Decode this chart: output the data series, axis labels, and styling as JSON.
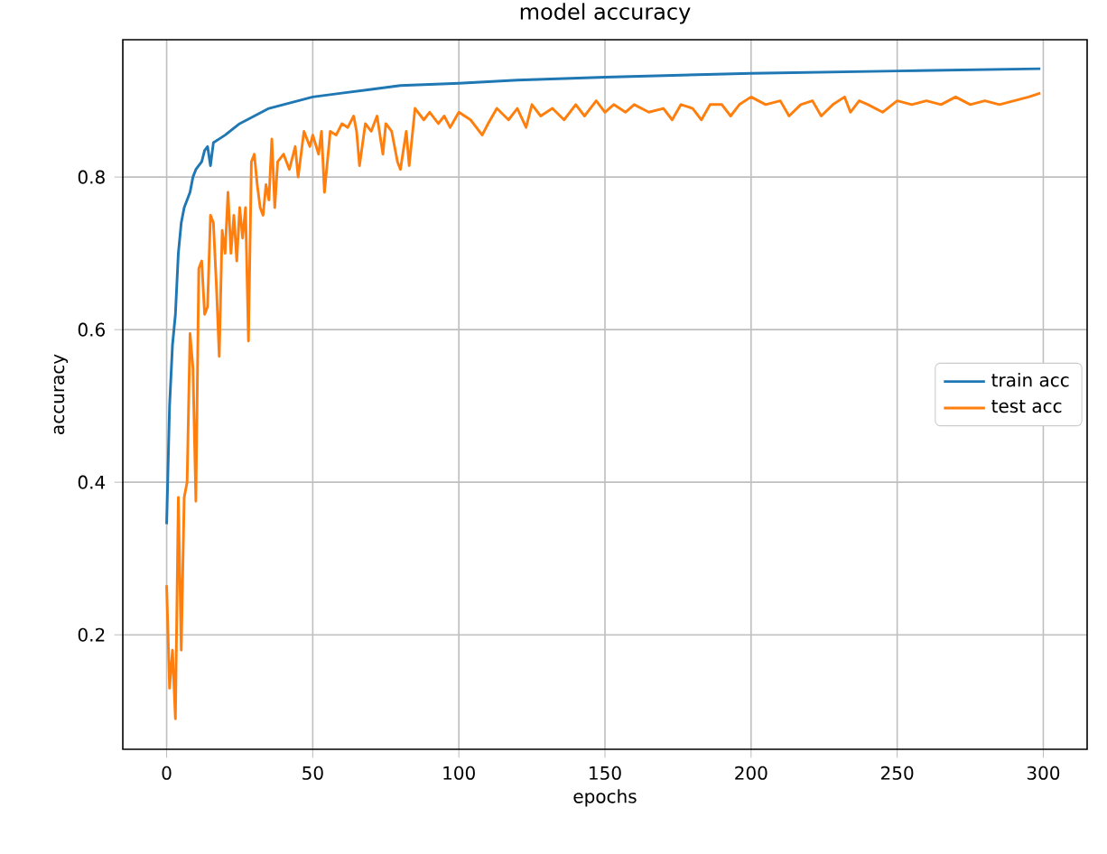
{
  "chart_data": {
    "type": "line",
    "title": "model accuracy",
    "xlabel": "epochs",
    "ylabel": "accuracy",
    "xlim": [
      -15,
      315
    ],
    "ylim": [
      0.05,
      0.98
    ],
    "xticks": [
      0,
      50,
      100,
      150,
      200,
      250,
      300
    ],
    "yticks": [
      0.2,
      0.4,
      0.6,
      0.8
    ],
    "grid": true,
    "legend": "right",
    "marker": "none",
    "line_style": "solid",
    "series": [
      {
        "name": "train acc",
        "color": "#1f77b4",
        "x": [
          0,
          1,
          2,
          3,
          4,
          5,
          6,
          7,
          8,
          9,
          10,
          12,
          13,
          14,
          15,
          16,
          18,
          20,
          25,
          30,
          35,
          40,
          50,
          60,
          70,
          80,
          100,
          120,
          150,
          200,
          250,
          299
        ],
        "values": [
          0.345,
          0.5,
          0.58,
          0.62,
          0.7,
          0.74,
          0.76,
          0.77,
          0.78,
          0.8,
          0.81,
          0.82,
          0.835,
          0.84,
          0.815,
          0.845,
          0.85,
          0.855,
          0.87,
          0.88,
          0.89,
          0.895,
          0.905,
          0.91,
          0.915,
          0.92,
          0.923,
          0.927,
          0.931,
          0.936,
          0.939,
          0.942
        ]
      },
      {
        "name": "test acc",
        "color": "#ff7f0e",
        "x": [
          0,
          1,
          2,
          3,
          4,
          5,
          6,
          7,
          8,
          9,
          10,
          11,
          12,
          13,
          14,
          15,
          16,
          17,
          18,
          19,
          20,
          21,
          22,
          23,
          24,
          25,
          26,
          27,
          28,
          29,
          30,
          31,
          32,
          33,
          34,
          35,
          36,
          37,
          38,
          40,
          42,
          44,
          45,
          47,
          49,
          50,
          52,
          53,
          54,
          56,
          58,
          60,
          62,
          64,
          65,
          66,
          68,
          70,
          72,
          74,
          75,
          77,
          79,
          80,
          82,
          83,
          85,
          88,
          90,
          93,
          95,
          97,
          100,
          104,
          108,
          110,
          113,
          117,
          120,
          123,
          125,
          128,
          132,
          136,
          140,
          143,
          147,
          150,
          153,
          157,
          160,
          165,
          170,
          173,
          176,
          180,
          183,
          186,
          190,
          193,
          196,
          200,
          205,
          210,
          213,
          217,
          221,
          224,
          228,
          232,
          234,
          237,
          240,
          245,
          250,
          255,
          260,
          265,
          270,
          275,
          280,
          285,
          290,
          295,
          299
        ],
        "values": [
          0.265,
          0.13,
          0.18,
          0.09,
          0.38,
          0.18,
          0.38,
          0.4,
          0.595,
          0.55,
          0.375,
          0.68,
          0.69,
          0.62,
          0.63,
          0.75,
          0.74,
          0.66,
          0.565,
          0.73,
          0.7,
          0.78,
          0.7,
          0.75,
          0.69,
          0.76,
          0.72,
          0.76,
          0.585,
          0.82,
          0.83,
          0.79,
          0.76,
          0.75,
          0.79,
          0.77,
          0.85,
          0.76,
          0.82,
          0.83,
          0.81,
          0.84,
          0.8,
          0.86,
          0.84,
          0.855,
          0.83,
          0.86,
          0.78,
          0.86,
          0.855,
          0.87,
          0.865,
          0.88,
          0.86,
          0.815,
          0.87,
          0.86,
          0.88,
          0.83,
          0.87,
          0.86,
          0.82,
          0.81,
          0.86,
          0.815,
          0.89,
          0.875,
          0.885,
          0.87,
          0.88,
          0.865,
          0.885,
          0.875,
          0.855,
          0.87,
          0.89,
          0.875,
          0.89,
          0.865,
          0.895,
          0.88,
          0.89,
          0.875,
          0.895,
          0.88,
          0.9,
          0.885,
          0.895,
          0.885,
          0.895,
          0.885,
          0.89,
          0.875,
          0.895,
          0.89,
          0.875,
          0.895,
          0.895,
          0.88,
          0.895,
          0.905,
          0.895,
          0.9,
          0.88,
          0.895,
          0.9,
          0.88,
          0.895,
          0.905,
          0.885,
          0.9,
          0.895,
          0.885,
          0.9,
          0.895,
          0.9,
          0.895,
          0.905,
          0.895,
          0.9,
          0.895,
          0.9,
          0.905,
          0.91
        ]
      }
    ]
  }
}
